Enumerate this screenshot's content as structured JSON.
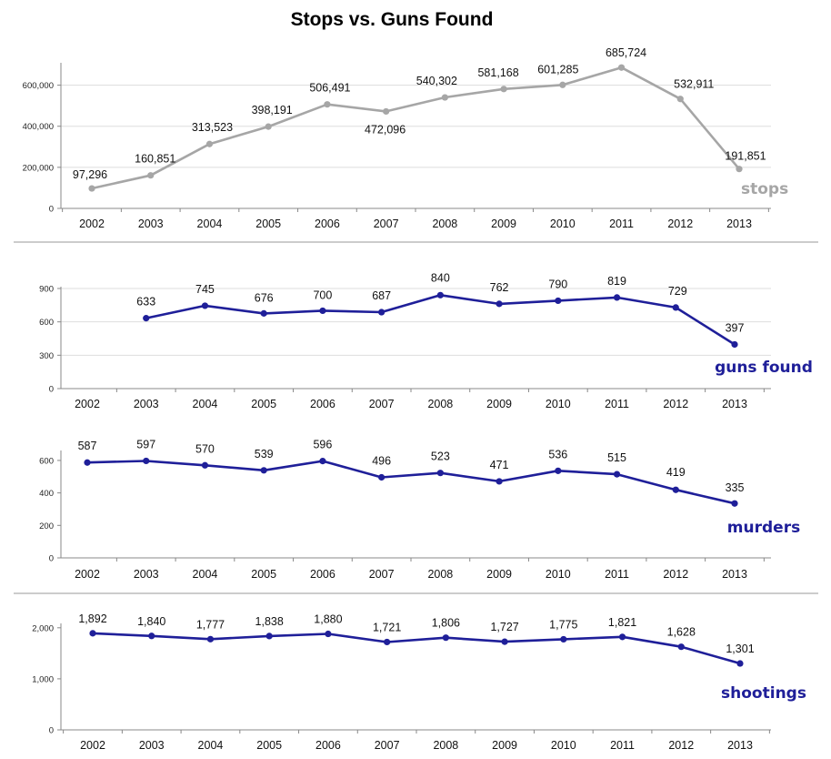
{
  "title": "Stops vs. Guns Found",
  "chart_data": [
    {
      "type": "line",
      "x": [
        "2002",
        "2003",
        "2004",
        "2005",
        "2006",
        "2007",
        "2008",
        "2009",
        "2010",
        "2011",
        "2012",
        "2013"
      ],
      "series": [
        {
          "name": "stops",
          "values": [
            97296,
            160851,
            313523,
            398191,
            506491,
            472096,
            540302,
            581168,
            601285,
            685724,
            532911,
            191851
          ]
        }
      ],
      "data_labels": [
        "97,296",
        "160,851",
        "313,523",
        "398,191",
        "506,491",
        "472,096",
        "540,302",
        "581,168",
        "601,285",
        "685,724",
        "532,911",
        "191,851"
      ],
      "yticks": [
        "0",
        "200,000",
        "400,000",
        "600,000"
      ],
      "ylim": [
        0,
        700000
      ],
      "color": "#a6a6a6",
      "grid": true
    },
    {
      "type": "line",
      "x": [
        "2002",
        "2003",
        "2004",
        "2005",
        "2006",
        "2007",
        "2008",
        "2009",
        "2010",
        "2011",
        "2012",
        "2013"
      ],
      "series": [
        {
          "name": "guns found",
          "values": [
            null,
            633,
            745,
            676,
            700,
            687,
            840,
            762,
            790,
            819,
            729,
            397
          ]
        }
      ],
      "data_labels": [
        "",
        "633",
        "745",
        "676",
        "700",
        "687",
        "840",
        "762",
        "790",
        "819",
        "729",
        "397"
      ],
      "yticks": [
        "0",
        "300",
        "600",
        "900"
      ],
      "ylim": [
        0,
        900
      ],
      "color": "#1f1f99",
      "grid": true
    },
    {
      "type": "line",
      "x": [
        "2002",
        "2003",
        "2004",
        "2005",
        "2006",
        "2007",
        "2008",
        "2009",
        "2010",
        "2011",
        "2012",
        "2013"
      ],
      "series": [
        {
          "name": "murders",
          "values": [
            587,
            597,
            570,
            539,
            596,
            496,
            523,
            471,
            536,
            515,
            419,
            335
          ]
        }
      ],
      "data_labels": [
        "587",
        "597",
        "570",
        "539",
        "596",
        "496",
        "523",
        "471",
        "536",
        "515",
        "419",
        "335"
      ],
      "yticks": [
        "0",
        "200",
        "400",
        "600"
      ],
      "ylim": [
        0,
        650
      ],
      "color": "#1f1f99",
      "grid": false
    },
    {
      "type": "line",
      "x": [
        "2002",
        "2003",
        "2004",
        "2005",
        "2006",
        "2007",
        "2008",
        "2009",
        "2010",
        "2011",
        "2012",
        "2013"
      ],
      "series": [
        {
          "name": "shootings",
          "values": [
            1892,
            1840,
            1777,
            1838,
            1880,
            1721,
            1806,
            1727,
            1775,
            1821,
            1628,
            1301
          ]
        }
      ],
      "data_labels": [
        "1,892",
        "1,840",
        "1,777",
        "1,838",
        "1,880",
        "1,721",
        "1,806",
        "1,727",
        "1,775",
        "1,821",
        "1,628",
        "1,301"
      ],
      "yticks": [
        "0",
        "1,000",
        "2,000"
      ],
      "ylim": [
        0,
        2050
      ],
      "color": "#1f1f99",
      "grid": false
    }
  ]
}
